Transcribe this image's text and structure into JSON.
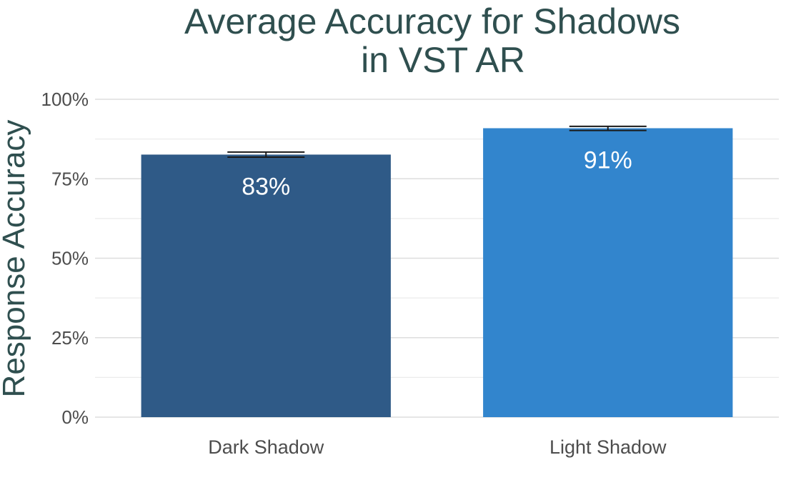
{
  "chart_data": {
    "type": "bar",
    "title_lines": [
      "Average Accuracy for Shadows",
      "in VST AR"
    ],
    "xlabel": "",
    "ylabel": "Response Accuracy",
    "categories": [
      "Dark Shadow",
      "Light Shadow"
    ],
    "values": [
      0.826,
      0.909
    ],
    "error_low": [
      0.818,
      0.902
    ],
    "error_high": [
      0.834,
      0.915
    ],
    "data_labels": [
      "83%",
      "91%"
    ],
    "colors": [
      "#2f5a87",
      "#3285cd"
    ],
    "ylim": [
      0,
      1
    ],
    "y_ticks": [
      0,
      0.25,
      0.5,
      0.75,
      1.0
    ],
    "y_tick_labels": [
      "0%",
      "25%",
      "50%",
      "75%",
      "100%"
    ],
    "y_minor_ticks": [
      0.125,
      0.375,
      0.625,
      0.875
    ],
    "grid": true,
    "legend": "none"
  }
}
